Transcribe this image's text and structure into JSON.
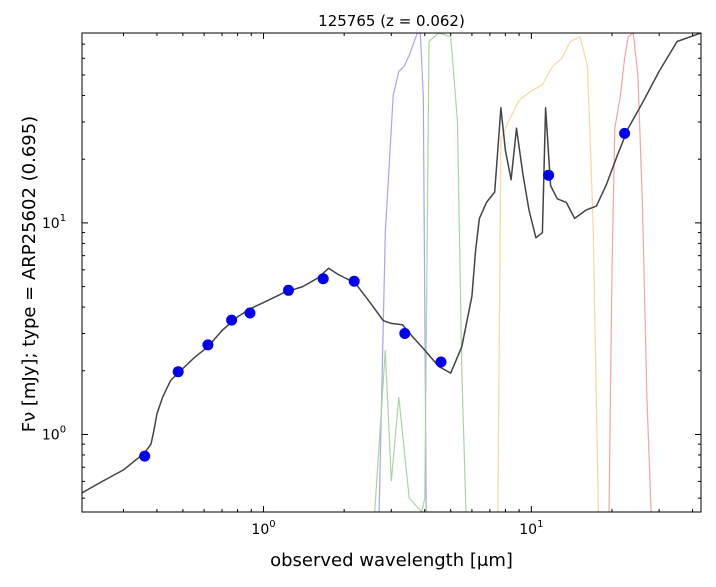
{
  "chart_data": {
    "type": "scatter",
    "title": "125765 (z = 0.062)",
    "xlabel": "observed wavelength [μm]",
    "ylabel": "Fν [mJy];  type = ARP25602 (0.695)",
    "xscale": "log",
    "yscale": "log",
    "xlim": [
      0.21,
      43
    ],
    "ylim": [
      0.43,
      79
    ],
    "grid": false,
    "x_ticks": [
      {
        "value": 1,
        "label": "10^0"
      },
      {
        "value": 10,
        "label": "10^1"
      }
    ],
    "y_ticks": [
      {
        "value": 1,
        "label": "10^0"
      },
      {
        "value": 10,
        "label": "10^1"
      }
    ],
    "photometry": {
      "color": "#0000ee",
      "points": [
        {
          "x": 0.36,
          "y": 0.79
        },
        {
          "x": 0.48,
          "y": 1.98
        },
        {
          "x": 0.62,
          "y": 2.65
        },
        {
          "x": 0.76,
          "y": 3.47
        },
        {
          "x": 0.89,
          "y": 3.75
        },
        {
          "x": 1.24,
          "y": 4.8
        },
        {
          "x": 1.67,
          "y": 5.45
        },
        {
          "x": 2.18,
          "y": 5.3
        },
        {
          "x": 3.37,
          "y": 3.0
        },
        {
          "x": 4.6,
          "y": 2.2
        },
        {
          "x": 11.6,
          "y": 16.8
        },
        {
          "x": 22.3,
          "y": 26.5
        }
      ]
    },
    "model_sed": {
      "color": "#444444",
      "points": [
        [
          0.21,
          0.53
        ],
        [
          0.25,
          0.6
        ],
        [
          0.3,
          0.68
        ],
        [
          0.33,
          0.75
        ],
        [
          0.36,
          0.82
        ],
        [
          0.38,
          0.9
        ],
        [
          0.39,
          1.05
        ],
        [
          0.4,
          1.25
        ],
        [
          0.42,
          1.5
        ],
        [
          0.45,
          1.8
        ],
        [
          0.5,
          2.05
        ],
        [
          0.55,
          2.3
        ],
        [
          0.62,
          2.6
        ],
        [
          0.7,
          3.1
        ],
        [
          0.8,
          3.6
        ],
        [
          0.9,
          3.95
        ],
        [
          1.0,
          4.2
        ],
        [
          1.2,
          4.7
        ],
        [
          1.4,
          5.0
        ],
        [
          1.6,
          5.5
        ],
        [
          1.75,
          6.1
        ],
        [
          1.9,
          5.7
        ],
        [
          2.2,
          5.2
        ],
        [
          2.5,
          4.2
        ],
        [
          2.8,
          3.45
        ],
        [
          3.0,
          3.35
        ],
        [
          3.3,
          3.3
        ],
        [
          3.6,
          2.9
        ],
        [
          4.0,
          2.5
        ],
        [
          4.5,
          2.1
        ],
        [
          5.0,
          1.95
        ],
        [
          5.5,
          2.6
        ],
        [
          6.0,
          4.5
        ],
        [
          6.2,
          7.5
        ],
        [
          6.4,
          10.5
        ],
        [
          6.8,
          12.5
        ],
        [
          7.3,
          14.0
        ],
        [
          7.7,
          35.0
        ],
        [
          8.0,
          22.0
        ],
        [
          8.4,
          16.0
        ],
        [
          8.8,
          28.0
        ],
        [
          9.3,
          17.0
        ],
        [
          9.8,
          11.5
        ],
        [
          10.4,
          8.5
        ],
        [
          11.0,
          9.0
        ],
        [
          11.3,
          35.0
        ],
        [
          11.8,
          15.0
        ],
        [
          12.5,
          13.0
        ],
        [
          13.5,
          12.5
        ],
        [
          14.5,
          10.5
        ],
        [
          16.0,
          11.5
        ],
        [
          17.5,
          12.0
        ],
        [
          19.0,
          15.0
        ],
        [
          21.0,
          21.0
        ],
        [
          23.0,
          28.0
        ],
        [
          26.0,
          37.0
        ],
        [
          30.0,
          52.0
        ],
        [
          35.0,
          72.0
        ],
        [
          43.0,
          79.0
        ]
      ]
    },
    "filter_curves": [
      {
        "color": "#a6a6f0",
        "points": [
          [
            2.7,
            0.43
          ],
          [
            2.85,
            9.0
          ],
          [
            3.05,
            40.0
          ],
          [
            3.2,
            52.0
          ],
          [
            3.35,
            55.0
          ],
          [
            3.5,
            62.0
          ],
          [
            3.75,
            79.0
          ],
          [
            3.85,
            79.0
          ],
          [
            3.95,
            40.0
          ],
          [
            4.05,
            0.43
          ]
        ]
      },
      {
        "color": "#a7d6a3",
        "points": [
          [
            2.6,
            0.43
          ],
          [
            2.85,
            2.5
          ],
          [
            3.0,
            0.6
          ],
          [
            3.2,
            1.5
          ],
          [
            3.5,
            0.5
          ],
          [
            3.9,
            0.43
          ],
          [
            4.0,
            0.5
          ],
          [
            4.15,
            72.0
          ],
          [
            4.5,
            79.0
          ],
          [
            5.0,
            76.0
          ],
          [
            5.3,
            30.0
          ],
          [
            5.5,
            2.0
          ],
          [
            5.7,
            0.43
          ]
        ]
      },
      {
        "color": "#f8d8a0",
        "points": [
          [
            7.5,
            0.43
          ],
          [
            7.7,
            25.0
          ],
          [
            8.2,
            30.0
          ],
          [
            9.0,
            38.0
          ],
          [
            10.0,
            42.0
          ],
          [
            11.0,
            45.0
          ],
          [
            12.0,
            55.0
          ],
          [
            13.0,
            60.0
          ],
          [
            14.0,
            72.0
          ],
          [
            15.2,
            76.0
          ],
          [
            16.2,
            55.0
          ],
          [
            17.0,
            10.0
          ],
          [
            17.8,
            0.43
          ]
        ]
      },
      {
        "color": "#f5a3a3",
        "points": [
          [
            19.5,
            0.43
          ],
          [
            20.0,
            6.0
          ],
          [
            20.5,
            28.0
          ],
          [
            21.5,
            40.0
          ],
          [
            22.3,
            60.0
          ],
          [
            23.0,
            76.0
          ],
          [
            24.0,
            79.0
          ],
          [
            25.0,
            50.0
          ],
          [
            26.0,
            12.0
          ],
          [
            27.0,
            1.5
          ],
          [
            28.0,
            0.43
          ]
        ]
      }
    ]
  }
}
